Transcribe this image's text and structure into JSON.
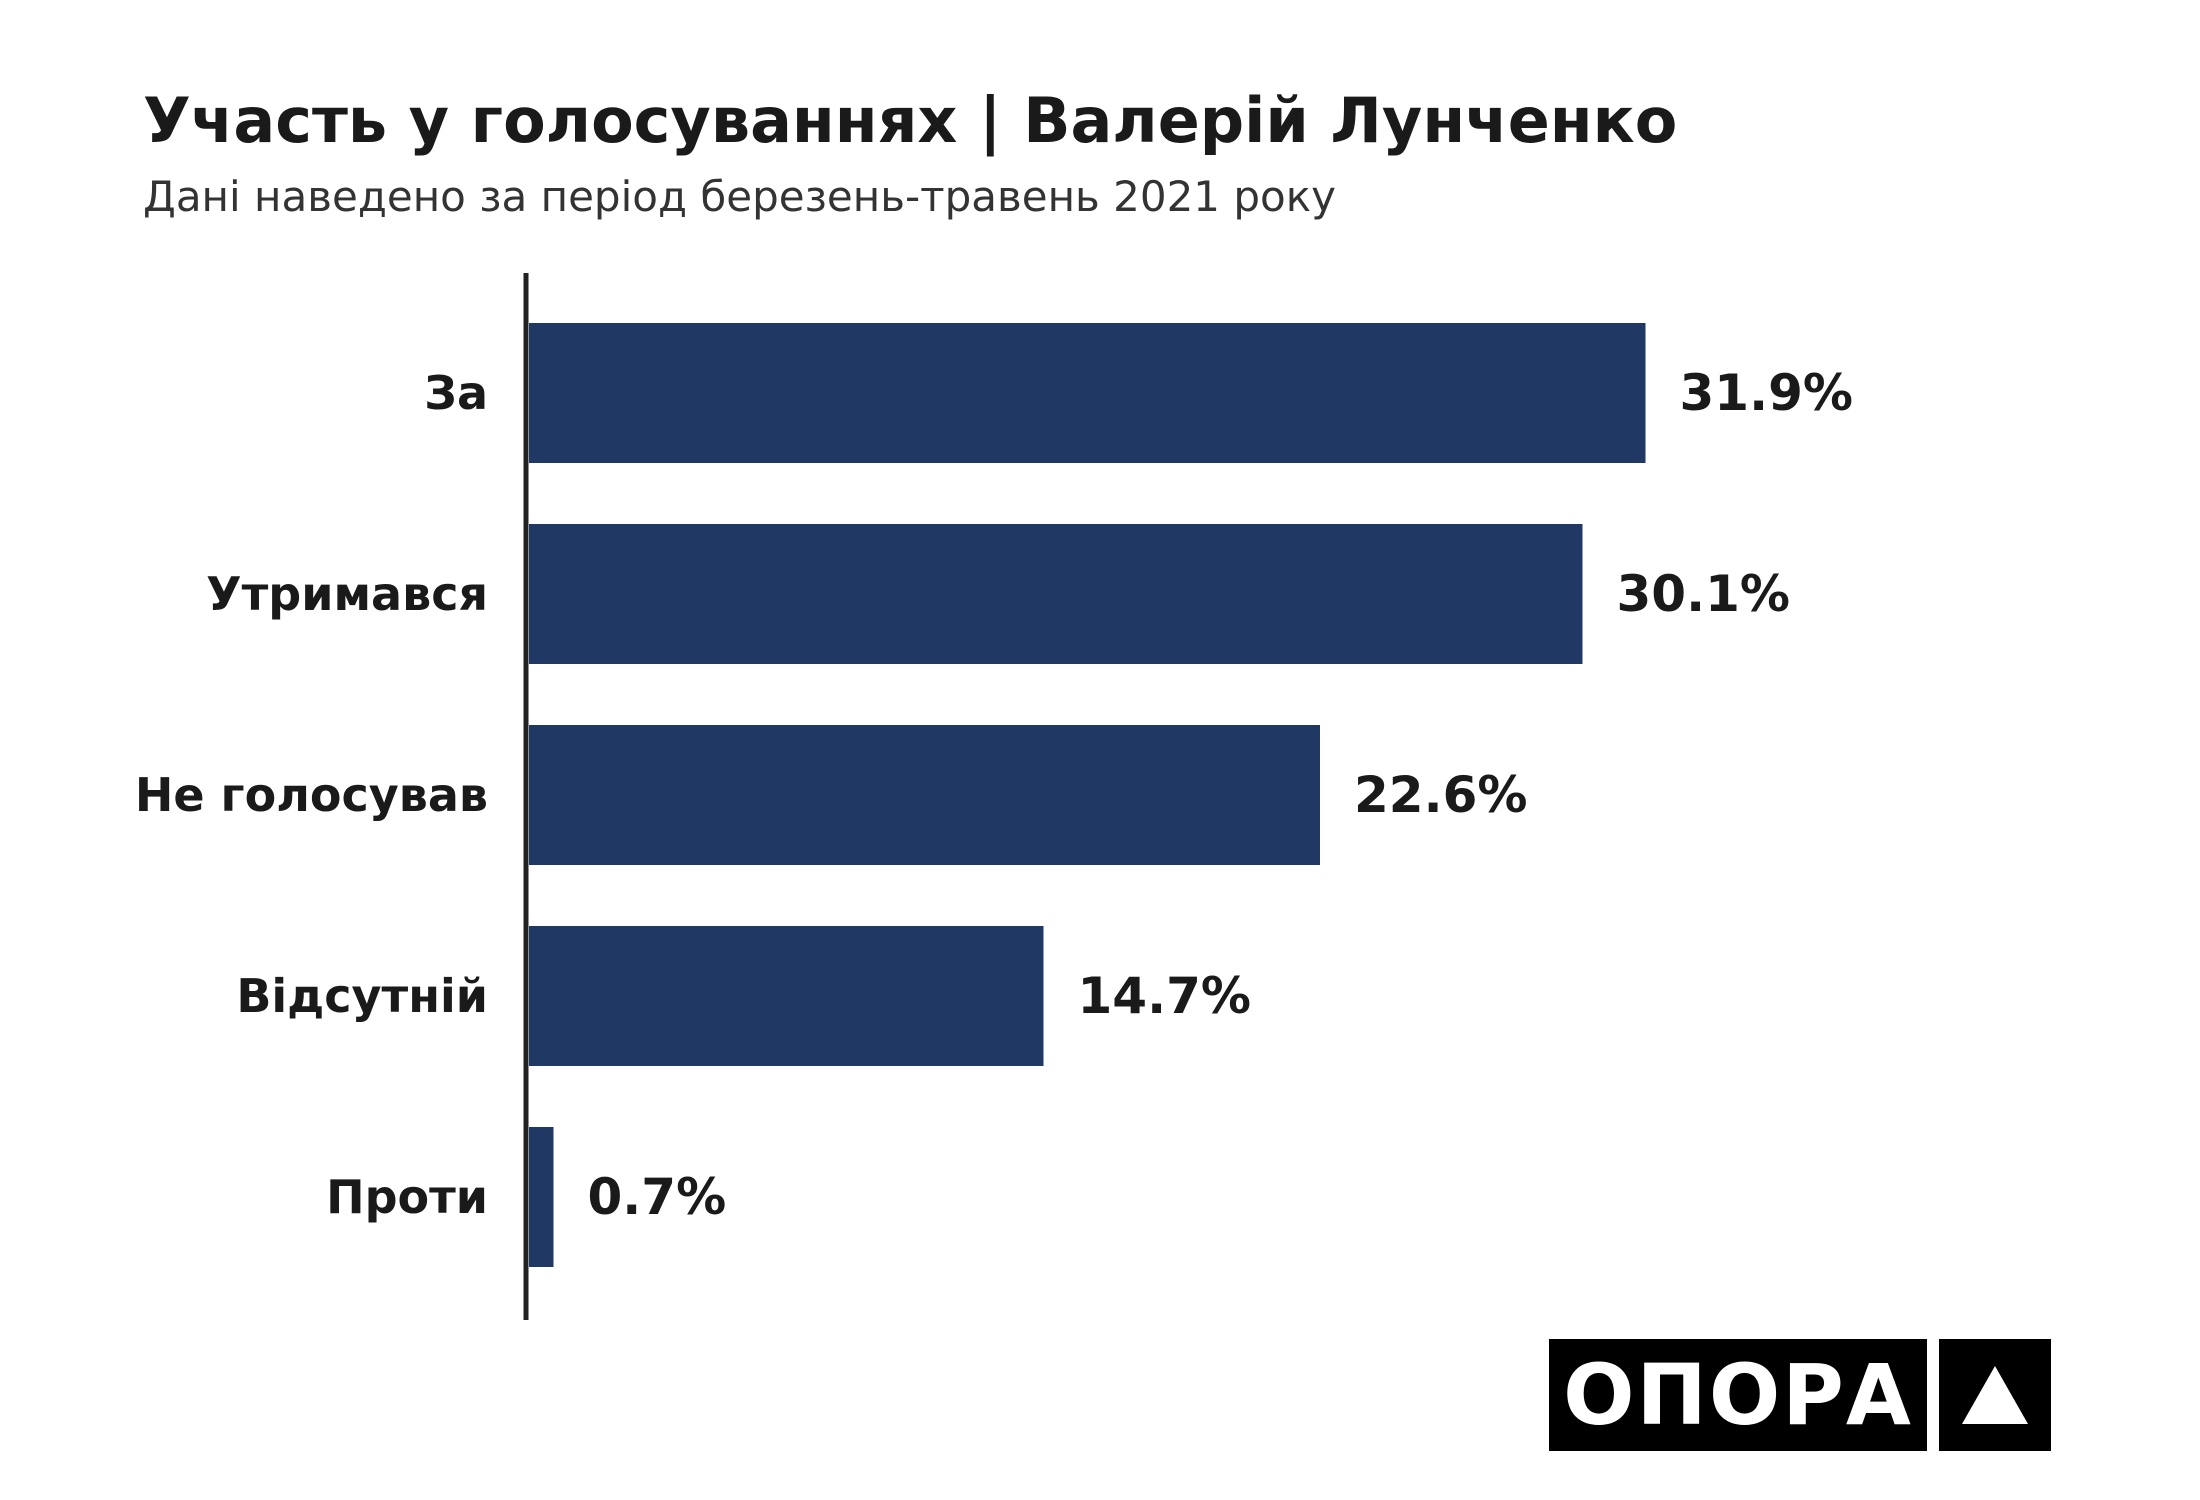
{
  "header": {
    "title": "Участь у голосуваннях | Валерій Лунченко",
    "subtitle": "Дані наведено за період березень-травень 2021 року"
  },
  "chart_data": {
    "type": "bar",
    "orientation": "horizontal",
    "categories": [
      "За",
      "Утримався",
      "Не голосував",
      "Відсутній",
      "Проти"
    ],
    "values": [
      31.9,
      30.1,
      22.6,
      14.7,
      0.7
    ],
    "value_labels": [
      "31.9%",
      "30.1%",
      "22.6%",
      "14.7%",
      "0.7%"
    ],
    "unit": "%",
    "bar_color": "#1f3864",
    "xlim": [
      0,
      40
    ],
    "grid": false,
    "legend": "none"
  },
  "brand": {
    "logo_text": "ОПОРА",
    "logo_icon": "triangle-icon",
    "logo_color": "#000000"
  }
}
